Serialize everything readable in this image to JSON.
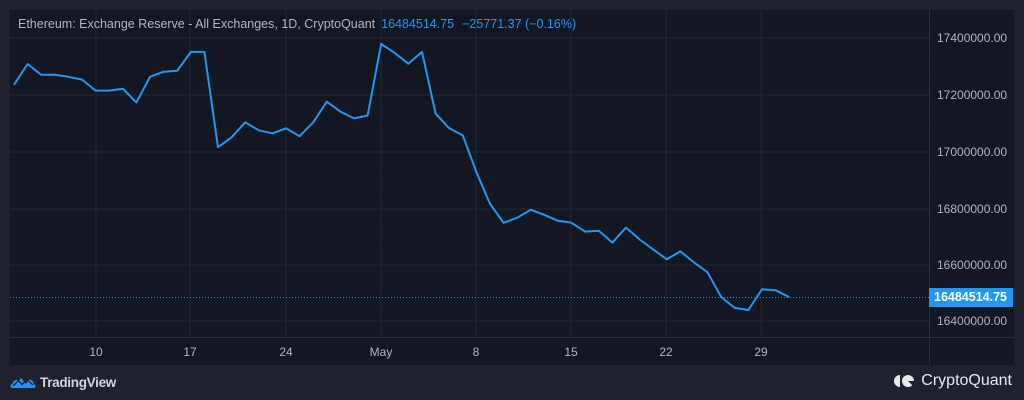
{
  "header": {
    "title": "Ethereum: Exchange Reserve - All Exchanges, 1D, CryptoQuant",
    "last_value": "16484514.75",
    "change": "−25771.37 (−0.16%)"
  },
  "price_tag": "16484514.75",
  "branding": {
    "left": "TradingView",
    "right": "CryptoQuant"
  },
  "colors": {
    "line": "#2196f3",
    "background": "#131722",
    "frame": "#1e222d",
    "text": "#b2b5be"
  },
  "chart_data": {
    "type": "line",
    "title": "Ethereum: Exchange Reserve - All Exchanges, 1D, CryptoQuant",
    "xlabel": "",
    "ylabel": "",
    "x_ticks": [
      "10",
      "17",
      "24",
      "May",
      "8",
      "15",
      "22",
      "29"
    ],
    "y_ticks": [
      "17400000.00",
      "17200000.00",
      "17000000.00",
      "16800000.00",
      "16600000.00",
      "16400000.00"
    ],
    "ylim": [
      16330000,
      17500000
    ],
    "grid": true,
    "legend": "none",
    "series": [
      {
        "name": "Exchange Reserve",
        "x": [
          "Apr 4",
          "Apr 5",
          "Apr 6",
          "Apr 7",
          "Apr 8",
          "Apr 9",
          "Apr 10",
          "Apr 11",
          "Apr 12",
          "Apr 13",
          "Apr 14",
          "Apr 15",
          "Apr 16",
          "Apr 17",
          "Apr 18",
          "Apr 19",
          "Apr 20",
          "Apr 21",
          "Apr 22",
          "Apr 23",
          "Apr 24",
          "Apr 25",
          "Apr 26",
          "Apr 27",
          "Apr 28",
          "Apr 29",
          "Apr 30",
          "May 1",
          "May 2",
          "May 3",
          "May 4",
          "May 5",
          "May 6",
          "May 7",
          "May 8",
          "May 9",
          "May 10",
          "May 11",
          "May 12",
          "May 13",
          "May 14",
          "May 15",
          "May 16",
          "May 17",
          "May 18",
          "May 19",
          "May 20",
          "May 21",
          "May 22",
          "May 23",
          "May 24",
          "May 25",
          "May 26",
          "May 27",
          "May 28",
          "May 29",
          "May 30",
          "May 31"
        ],
        "values": [
          17235000,
          17308000,
          17270000,
          17270000,
          17263000,
          17253000,
          17214000,
          17214000,
          17221000,
          17172000,
          17263000,
          17281000,
          17284000,
          17351000,
          17351000,
          17014000,
          17049000,
          17102000,
          17074000,
          17063000,
          17081000,
          17053000,
          17102000,
          17175000,
          17140000,
          17116000,
          17126000,
          17379000,
          17347000,
          17309000,
          17351000,
          17133000,
          17081000,
          17056000,
          16926000,
          16814000,
          16747000,
          16765000,
          16793000,
          16775000,
          16754000,
          16747000,
          16716000,
          16719000,
          16677000,
          16730000,
          16688000,
          16653000,
          16618000,
          16646000,
          16607000,
          16572000,
          16484000,
          16446000,
          16439000,
          16512000,
          16509000,
          16484515
        ]
      }
    ]
  }
}
